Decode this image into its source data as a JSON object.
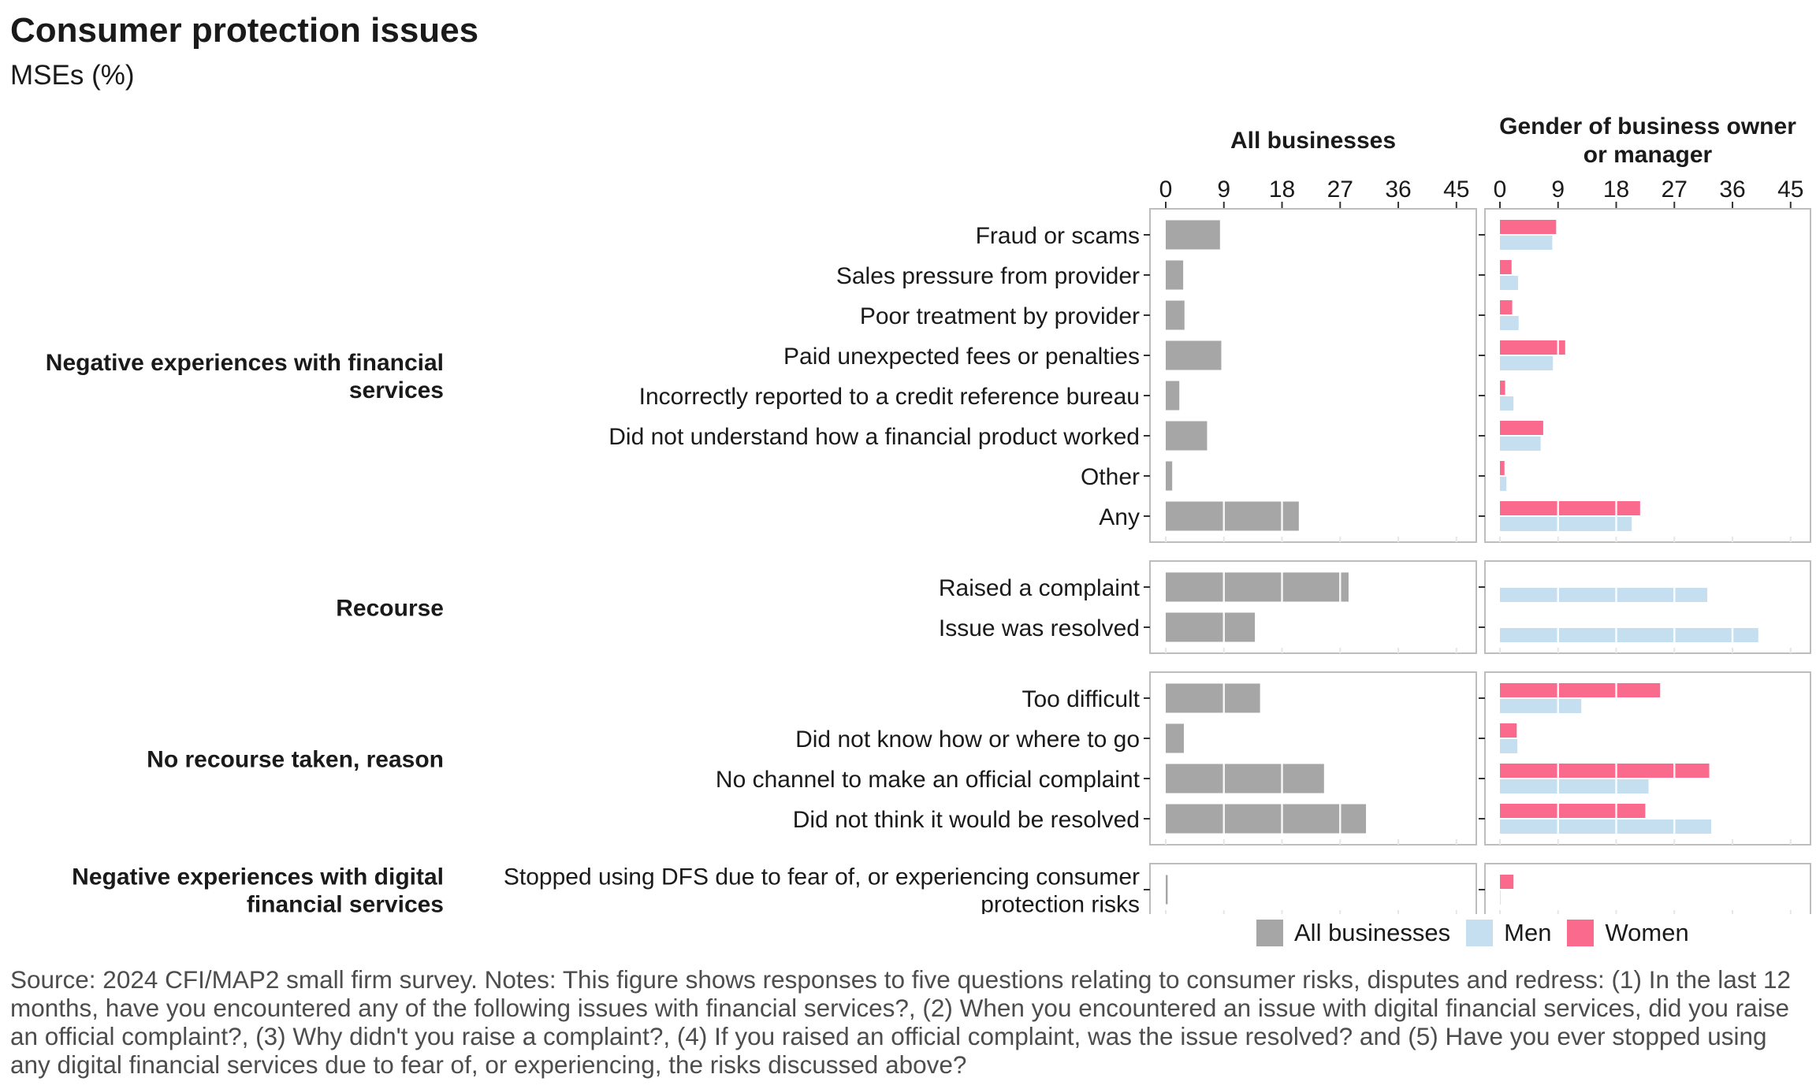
{
  "title": "Consumer protection issues",
  "subtitle": "MSEs (%)",
  "caption": "Source: 2024 CFI/MAP2 small firm survey. Notes: This figure shows responses to five questions relating to consumer risks, disputes and redress: (1) In the last 12 months, have you encountered any of the following issues with financial services?, (2) When you encountered an issue with digital financial services, did you raise an official complaint?, (3) Why didn't you raise a complaint?, (4) If you raised an official complaint, was the issue resolved? and (5) Have you ever stopped using any digital financial services due to fear of, or experiencing, the risks discussed above?",
  "legend": [
    {
      "label": "All businesses",
      "color": "#a6a6a6"
    },
    {
      "label": "Men",
      "color": "#c6dff0"
    },
    {
      "label": "Women",
      "color": "#f96a8c"
    }
  ],
  "chart_data": {
    "type": "bar",
    "orientation": "horizontal",
    "panels": [
      "All businesses",
      "Gender of business owner or manager"
    ],
    "x_ticks": [
      0,
      9,
      18,
      27,
      36,
      45
    ],
    "xlim": [
      0,
      46
    ],
    "colors": {
      "All businesses": "#a6a6a6",
      "Men": "#c6dff0",
      "Women": "#f96a8c"
    },
    "groups": [
      {
        "label": "Negative experiences with financial services",
        "rows": [
          {
            "label": "Fraud or scams",
            "all": 8.4,
            "women": 8.7,
            "men": 8.1
          },
          {
            "label": "Sales pressure from provider",
            "all": 2.7,
            "women": 1.8,
            "men": 2.8
          },
          {
            "label": "Poor treatment by provider",
            "all": 2.9,
            "women": 1.9,
            "men": 2.9
          },
          {
            "label": "Paid unexpected fees or penalties",
            "all": 8.6,
            "women": 10.1,
            "men": 8.2
          },
          {
            "label": "Incorrectly reported to a credit reference bureau",
            "all": 2.1,
            "women": 0.8,
            "men": 2.1
          },
          {
            "label": "Did not understand how a financial product worked",
            "all": 6.4,
            "women": 6.7,
            "men": 6.3
          },
          {
            "label": "Other",
            "all": 1.0,
            "women": 0.7,
            "men": 1.0
          },
          {
            "label": "Any",
            "all": 20.6,
            "women": 21.7,
            "men": 20.4
          }
        ]
      },
      {
        "label": "Recourse",
        "rows": [
          {
            "label": "Raised a complaint",
            "all": 28.3,
            "women": null,
            "men": 32.1
          },
          {
            "label": "Issue was resolved",
            "all": 13.8,
            "women": null,
            "men": 40.0
          }
        ]
      },
      {
        "label": "No recourse taken, reason",
        "rows": [
          {
            "label": "Too difficult",
            "all": 14.6,
            "women": 24.8,
            "men": 12.6
          },
          {
            "label": "Did not know how or where to go",
            "all": 2.8,
            "women": 2.6,
            "men": 2.7
          },
          {
            "label": "No channel to make an official complaint",
            "all": 24.5,
            "women": 32.4,
            "men": 23.0
          },
          {
            "label": "Did not think it would be resolved",
            "all": 31.0,
            "women": 22.5,
            "men": 32.7
          }
        ]
      },
      {
        "label": "Negative experiences with digital financial services",
        "rows": [
          {
            "label": "Stopped using DFS due to fear of, or experiencing consumer protection risks",
            "all": 0.3,
            "women": 2.1,
            "men": 0.1
          }
        ]
      }
    ]
  }
}
